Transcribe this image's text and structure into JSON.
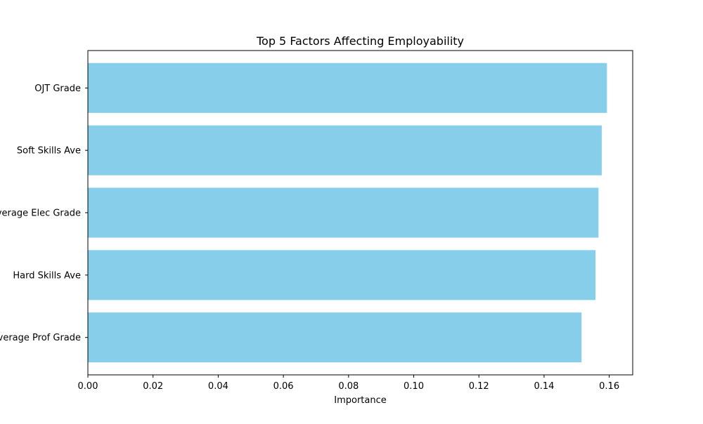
{
  "chart_data": {
    "type": "bar",
    "orientation": "horizontal",
    "title": "Top 5 Factors Affecting Employability",
    "xlabel": "Importance",
    "ylabel": "",
    "categories": [
      "OJT Grade",
      "Soft Skills Ave",
      "Average Elec Grade",
      "Hard Skills Ave",
      "Average Prof Grade"
    ],
    "values": [
      0.1593,
      0.1577,
      0.1567,
      0.1558,
      0.1515
    ],
    "xlim": [
      0,
      0.1672
    ],
    "xticks": [
      0.0,
      0.02,
      0.04,
      0.06,
      0.08,
      0.1,
      0.12,
      0.14,
      0.16
    ],
    "xtick_labels": [
      "0.00",
      "0.02",
      "0.04",
      "0.06",
      "0.08",
      "0.10",
      "0.12",
      "0.14",
      "0.16"
    ],
    "bar_color": "#87ceeb",
    "grid": false,
    "legend": "none"
  }
}
